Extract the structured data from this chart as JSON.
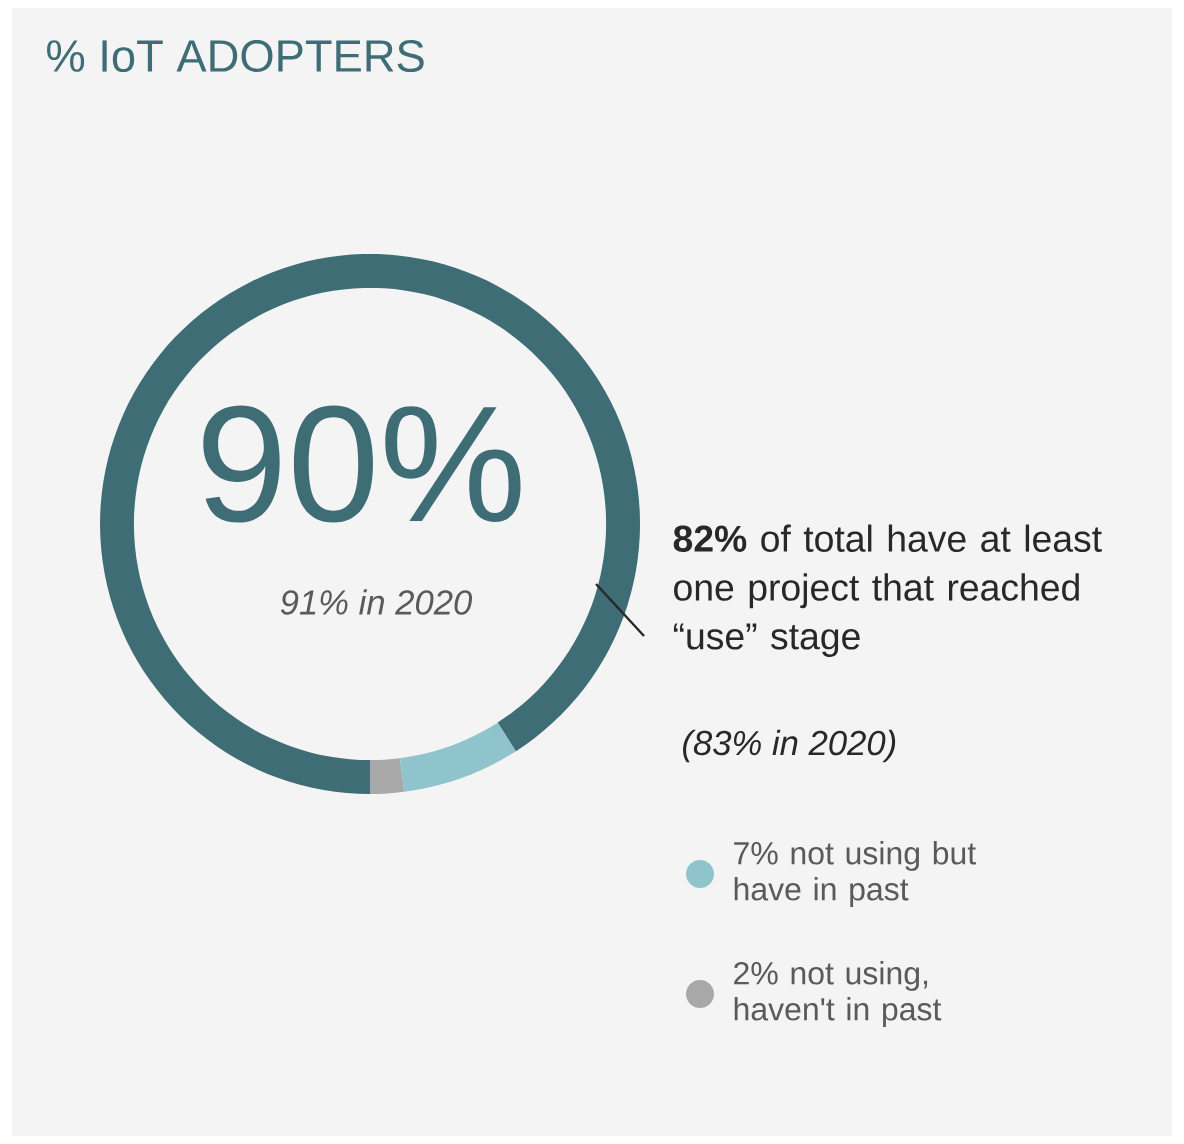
{
  "chart_data": {
    "type": "donut",
    "title": "% IoT ADOPTERS",
    "categories": [
      null,
      "7% not using but have in past",
      "2% not using, haven't in past"
    ],
    "values": [
      90,
      7,
      2
    ],
    "colors": [
      "#3e6d75",
      "#8fc4cd",
      "#a8a8a8"
    ],
    "value_labels": [
      "90%",
      null,
      null
    ],
    "annotations": [
      "91% in 2020",
      "**82%** of total have at least one project that reached “use” stage",
      "(83% in 2020)"
    ],
    "legend": "right"
  }
}
